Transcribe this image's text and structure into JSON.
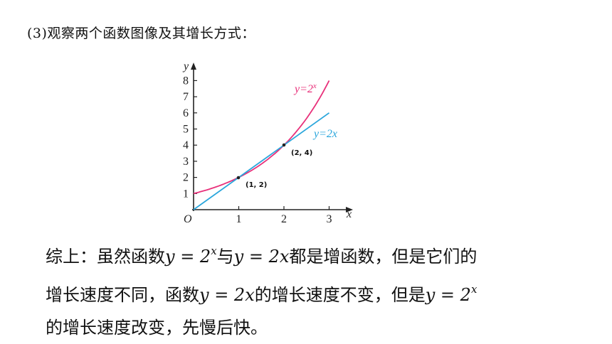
{
  "heading": "(3)观察两个函数图像及其增长方式：",
  "graph": {
    "x_axis_label": "x",
    "y_axis_label": "y",
    "origin_label": "O",
    "x_ticks": [
      "1",
      "2",
      "3"
    ],
    "y_ticks": [
      "1",
      "2",
      "3",
      "4",
      "5",
      "6",
      "7",
      "8"
    ],
    "curve_label_pow": "y=2",
    "curve_label_pow_exp": "x",
    "curve_label_lin": "y=2x",
    "point_1_label": "(1, 2)",
    "point_2_label": "(2, 4)",
    "colors": {
      "exponential": "#e8307a",
      "linear": "#2aa6dc",
      "axis": "#222222"
    }
  },
  "chart_data": {
    "type": "line",
    "x_range": [
      0,
      3
    ],
    "y_range": [
      0,
      8
    ],
    "series": [
      {
        "name": "y=2^x",
        "function": "2^x",
        "domain": [
          0,
          3
        ]
      },
      {
        "name": "y=2x",
        "function": "2x",
        "domain": [
          0,
          3
        ]
      }
    ],
    "points": [
      {
        "x": 1,
        "y": 2,
        "label": "(1, 2)"
      },
      {
        "x": 2,
        "y": 4,
        "label": "(2, 4)"
      }
    ]
  },
  "summary": {
    "l1_a": "综上：虽然函数",
    "l1_eq1_lhs": "y = 2",
    "l1_eq1_exp": "x",
    "l1_b": "与",
    "l1_eq2": "y = 2x",
    "l1_c": "都是增函数，但是它们的",
    "l2_a": "增长速度不同，函数",
    "l2_eq": "y = 2x",
    "l2_b": "的增长速度不变，但是",
    "l2_eq2_lhs": "y = 2",
    "l2_eq2_exp": "x",
    "l3": "的增长速度改变，先慢后快。"
  }
}
